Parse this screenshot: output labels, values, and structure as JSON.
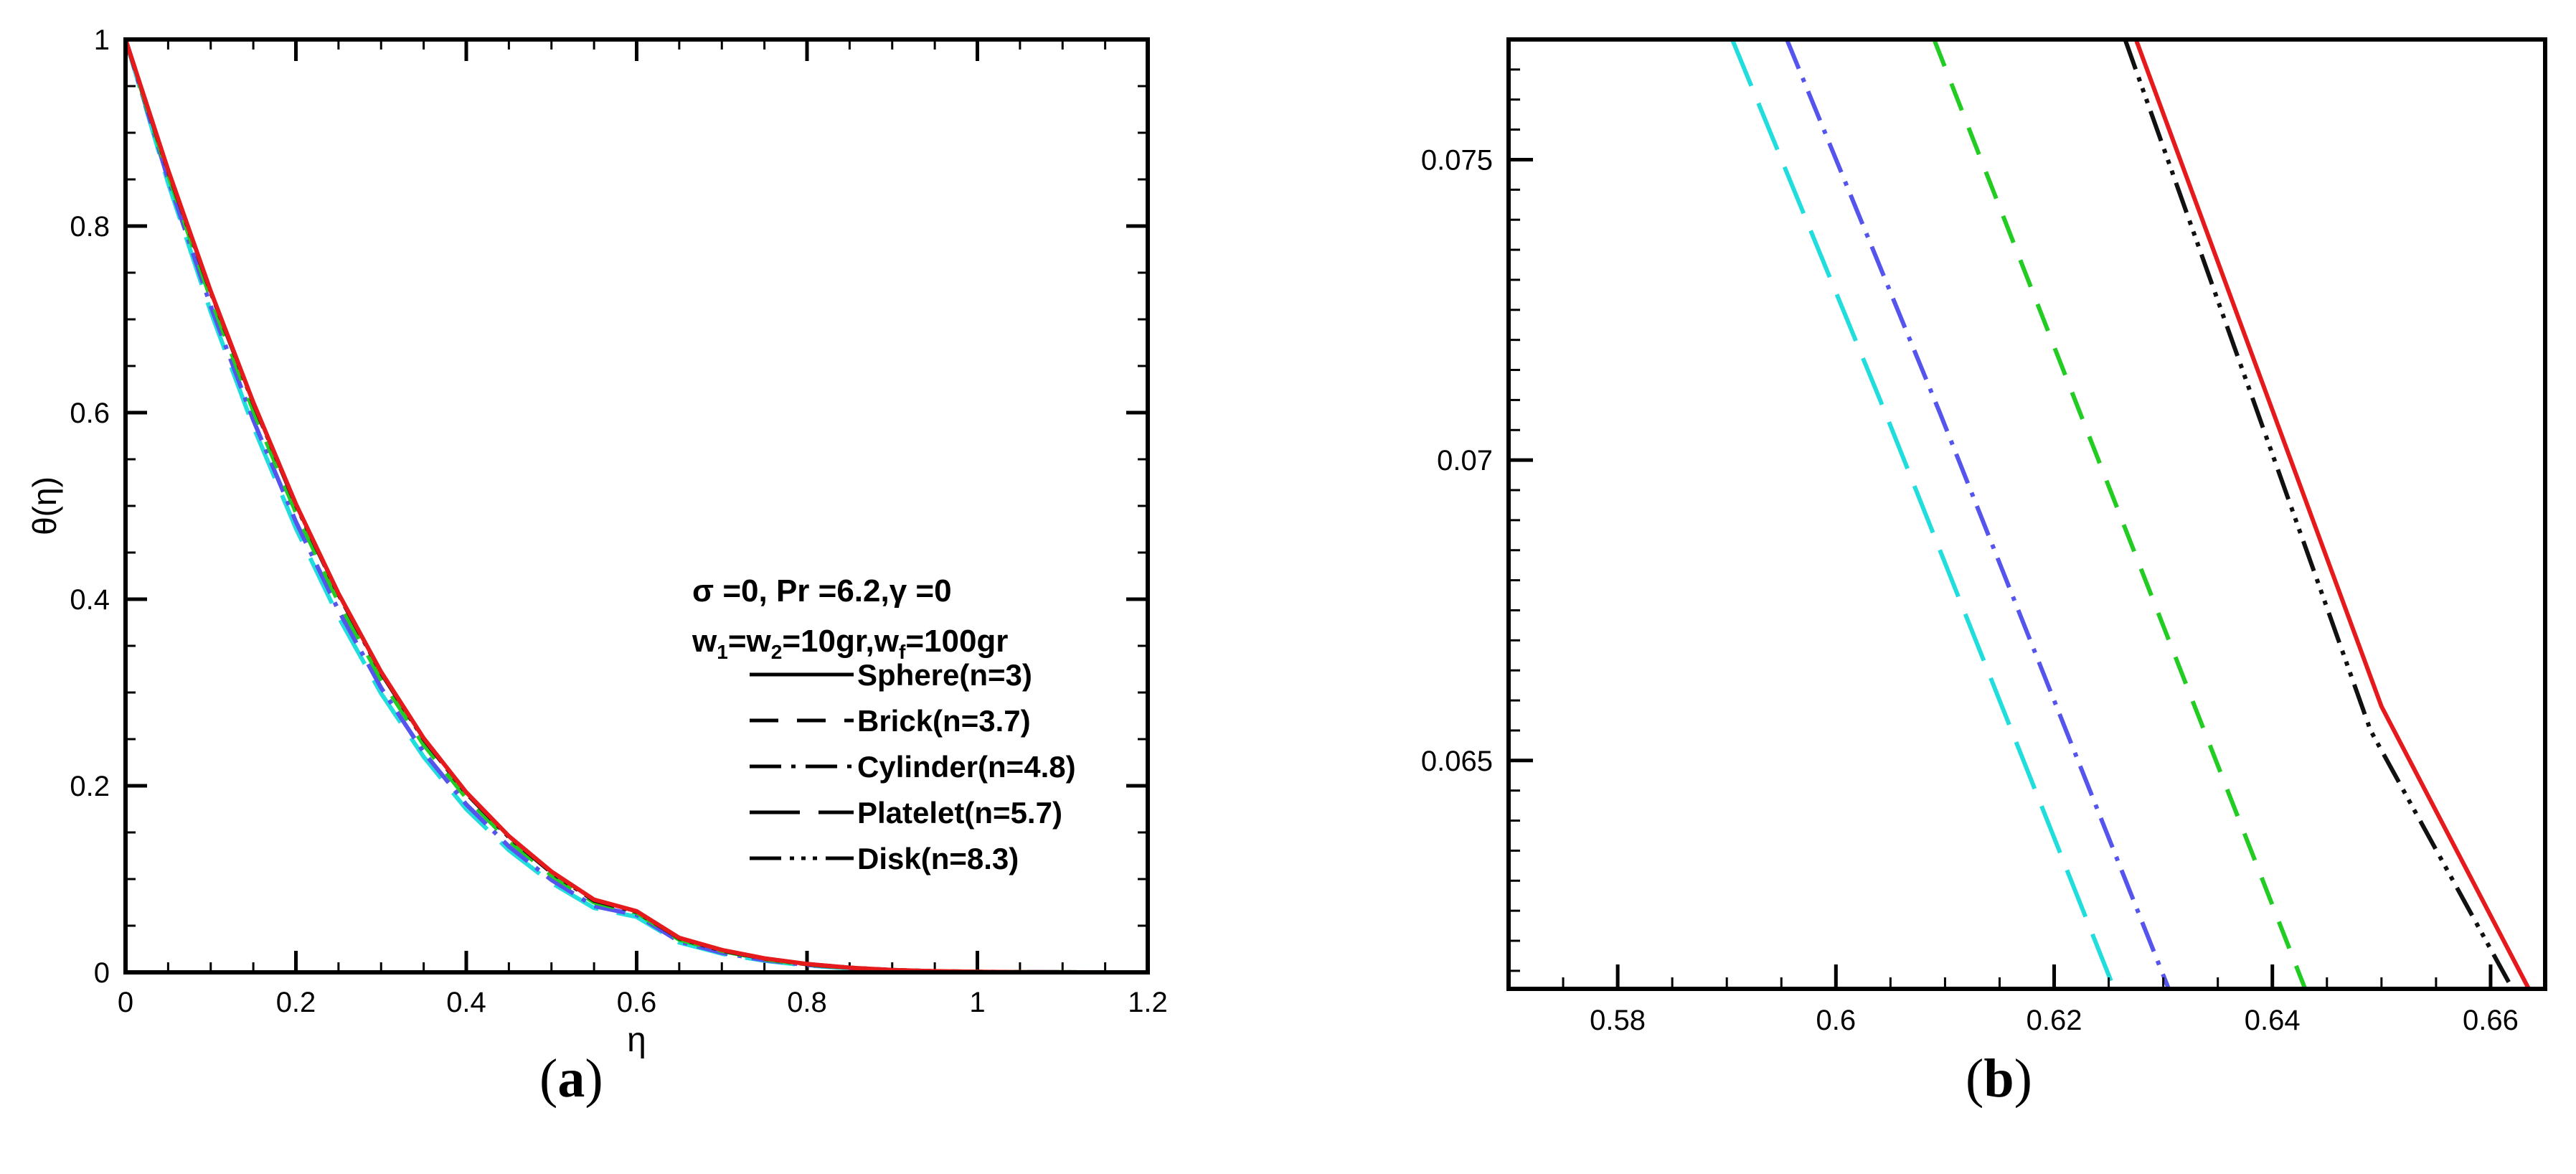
{
  "panels": {
    "a": {
      "caption_label": "a"
    },
    "b": {
      "caption_label": "b"
    }
  },
  "chart_data": [
    {
      "type": "line",
      "panel": "a",
      "title": "",
      "xlabel": "η",
      "ylabel": "θ(η)",
      "xlim": [
        0,
        1.2
      ],
      "ylim": [
        0,
        1
      ],
      "xticks": [
        0,
        0.2,
        0.4,
        0.6,
        0.8,
        1,
        1.2
      ],
      "xtick_labels": [
        "0",
        "0.2",
        "0.4",
        "0.6",
        "0.8",
        "1",
        "1.2"
      ],
      "yticks": [
        0,
        0.2,
        0.4,
        0.6,
        0.8,
        1
      ],
      "ytick_labels": [
        "0",
        "0.2",
        "0.4",
        "0.6",
        "0.8",
        "1"
      ],
      "grid": false,
      "annotation": {
        "line1": "σ =0, Pr =6.2,γ =0",
        "line2_prefix": "w",
        "line2_sub1": "1",
        "line2_mid": "=w",
        "line2_sub2": "2",
        "line2_mid2": "=10gr,w",
        "line2_subf": "f",
        "line2_suffix": "=100gr"
      },
      "legend": {
        "position": "right-center",
        "entries": [
          "Sphere(n=3)",
          "Brick(n=3.7)",
          "Cylinder(n=4.8)",
          "Platelet(n=5.7)",
          "Disk(n=8.3)"
        ]
      },
      "series": [
        {
          "name": "Sphere(n=3)",
          "color": "#e41a1c",
          "dash": "solid",
          "legend_dash": "solid",
          "x": [
            0,
            0.05,
            0.1,
            0.15,
            0.2,
            0.25,
            0.3,
            0.35,
            0.4,
            0.45,
            0.5,
            0.55,
            0.6,
            0.65,
            0.7,
            0.75,
            0.8,
            0.85,
            0.9,
            0.95,
            1.0,
            1.05,
            1.1,
            1.15,
            1.2
          ],
          "y": [
            1,
            0.86,
            0.73,
            0.611,
            0.502,
            0.406,
            0.322,
            0.251,
            0.193,
            0.146,
            0.108,
            0.078,
            0.0655,
            0.037,
            0.024,
            0.015,
            0.009,
            0.005,
            0.0025,
            0.0012,
            0.0005,
            0.0002,
            0.0001,
            3e-05,
            0
          ]
        },
        {
          "name": "Brick(n=3.7)",
          "color": "#22cc22",
          "dash": "40,26",
          "legend_dash": "40,26",
          "x": [
            0,
            0.05,
            0.1,
            0.15,
            0.2,
            0.25,
            0.3,
            0.35,
            0.4,
            0.45,
            0.5,
            0.55,
            0.6,
            0.65,
            0.7,
            0.75,
            0.8,
            0.85,
            0.9,
            0.95,
            1.0,
            1.05,
            1.1,
            1.15,
            1.2
          ],
          "y": [
            1,
            0.855,
            0.722,
            0.602,
            0.493,
            0.397,
            0.314,
            0.244,
            0.187,
            0.141,
            0.104,
            0.075,
            0.064,
            0.035,
            0.023,
            0.014,
            0.0085,
            0.0048,
            0.0024,
            0.0011,
            0.0005,
            0.0002,
            0.0001,
            3e-05,
            0
          ]
        },
        {
          "name": "Cylinder(n=4.8)",
          "color": "#5555ee",
          "dash": "44,14,6,14",
          "legend_dash": "44,14,6,14",
          "x": [
            0,
            0.05,
            0.1,
            0.15,
            0.2,
            0.25,
            0.3,
            0.35,
            0.4,
            0.45,
            0.5,
            0.55,
            0.6,
            0.65,
            0.7,
            0.75,
            0.8,
            0.85,
            0.9,
            0.95,
            1.0,
            1.05,
            1.1,
            1.15,
            1.2
          ],
          "y": [
            1,
            0.85,
            0.714,
            0.592,
            0.483,
            0.388,
            0.305,
            0.236,
            0.18,
            0.135,
            0.099,
            0.071,
            0.0615,
            0.033,
            0.021,
            0.013,
            0.008,
            0.0045,
            0.0022,
            0.001,
            0.0004,
            0.0002,
            0.0001,
            3e-05,
            0
          ]
        },
        {
          "name": "Platelet(n=5.7)",
          "color": "#22dddd",
          "dash": "70,26",
          "legend_dash": "70,26",
          "x": [
            0,
            0.05,
            0.1,
            0.15,
            0.2,
            0.25,
            0.3,
            0.35,
            0.4,
            0.45,
            0.5,
            0.55,
            0.6,
            0.65,
            0.7,
            0.75,
            0.8,
            0.85,
            0.9,
            0.95,
            1.0,
            1.05,
            1.1,
            1.15,
            1.2
          ],
          "y": [
            1,
            0.846,
            0.708,
            0.585,
            0.476,
            0.381,
            0.299,
            0.231,
            0.175,
            0.131,
            0.096,
            0.069,
            0.0595,
            0.032,
            0.02,
            0.0125,
            0.0075,
            0.0042,
            0.002,
            0.0009,
            0.0004,
            0.0002,
            0.0001,
            3e-05,
            0
          ]
        },
        {
          "name": "Disk(n=8.3)",
          "color": "#111111",
          "dash": "44,12,6,10,6,10,6,12",
          "legend_dash": "44,12,6,10,6,10,6,12",
          "x": [
            0,
            0.05,
            0.1,
            0.15,
            0.2,
            0.25,
            0.3,
            0.35,
            0.4,
            0.45,
            0.5,
            0.55,
            0.6,
            0.65,
            0.7,
            0.75,
            0.8,
            0.85,
            0.9,
            0.95,
            1.0,
            1.05,
            1.1,
            1.15,
            1.2
          ],
          "y": [
            1,
            0.859,
            0.729,
            0.61,
            0.501,
            0.405,
            0.321,
            0.25,
            0.192,
            0.145,
            0.107,
            0.077,
            0.065,
            0.0365,
            0.0235,
            0.0148,
            0.0088,
            0.005,
            0.0025,
            0.0012,
            0.0005,
            0.0002,
            0.0001,
            3e-05,
            0
          ]
        }
      ]
    },
    {
      "type": "line",
      "panel": "b",
      "title": "",
      "xlabel": "",
      "ylabel": "",
      "xlim": [
        0.57,
        0.665
      ],
      "ylim": [
        0.0612,
        0.077
      ],
      "xticks": [
        0.58,
        0.6,
        0.62,
        0.64,
        0.66
      ],
      "xtick_labels": [
        "0.58",
        "0.6",
        "0.62",
        "0.64",
        "0.66"
      ],
      "yticks": [
        0.065,
        0.07,
        0.075
      ],
      "ytick_labels": [
        "0.065",
        "0.07",
        "0.075"
      ],
      "grid": false,
      "series": [
        {
          "name": "Sphere(n=3)",
          "color": "#e41a1c",
          "dash": "solid",
          "x": [
            0.6275,
            0.65,
            0.6635
          ],
          "y": [
            0.077,
            0.0659,
            0.0612
          ]
        },
        {
          "name": "Disk(n=8.3)",
          "color": "#111111",
          "dash": "44,12,6,10,6,10,6,12",
          "x": [
            0.6265,
            0.649,
            0.662
          ],
          "y": [
            0.077,
            0.0655,
            0.0612
          ]
        },
        {
          "name": "Brick(n=3.7)",
          "color": "#22cc22",
          "dash": "40,26",
          "x": [
            0.609,
            0.643
          ],
          "y": [
            0.077,
            0.0612
          ]
        },
        {
          "name": "Cylinder(n=4.8)",
          "color": "#5555ee",
          "dash": "44,14,6,14",
          "x": [
            0.5955,
            0.6095,
            0.6305
          ],
          "y": [
            0.077,
            0.0708,
            0.0612
          ]
        },
        {
          "name": "Platelet(n=5.7)",
          "color": "#22dddd",
          "dash": "70,26",
          "x": [
            0.5905,
            0.6045,
            0.6255
          ],
          "y": [
            0.077,
            0.0708,
            0.0612
          ]
        }
      ]
    }
  ]
}
